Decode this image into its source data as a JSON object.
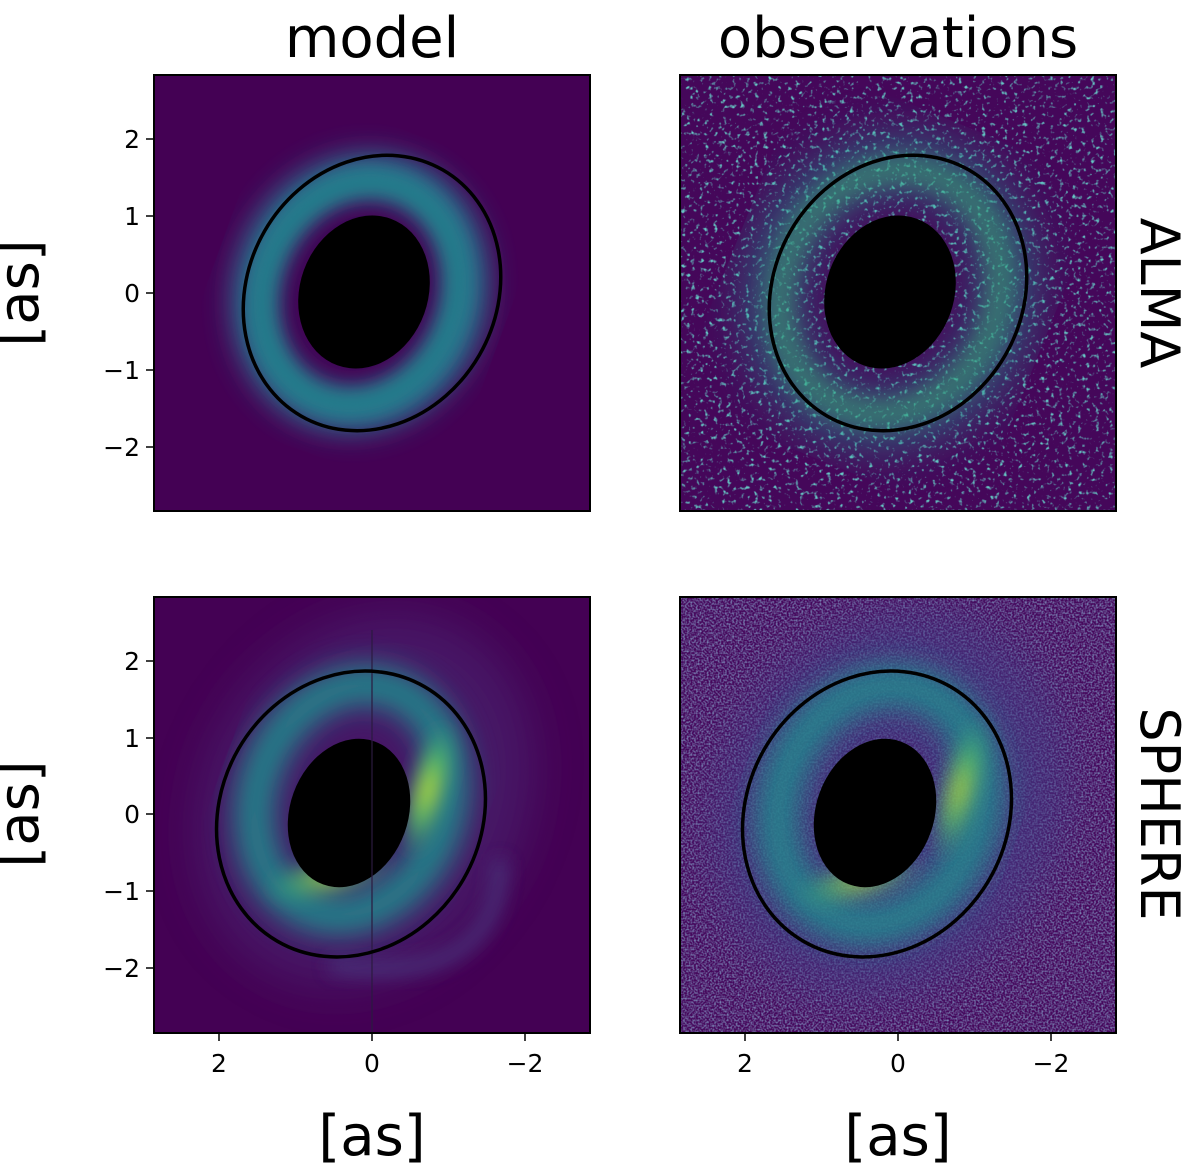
{
  "columns": [
    "model",
    "observations"
  ],
  "rows": [
    "ALMA",
    "SPHERE"
  ],
  "axis_label": "[as]",
  "y_ticks": [
    "2",
    "1",
    "0",
    "−1",
    "−2"
  ],
  "x_ticks": [
    "2",
    "0",
    "−2"
  ],
  "colors": {
    "background": "#440154",
    "observation_background": "#45075a",
    "ring_dim": "#3b528b",
    "ring_mid": "#21918c",
    "ring_bright": "#5ec962",
    "ring_peak": "#fde725",
    "mask": "#000000",
    "contour": "#000000"
  },
  "chart_data": [
    {
      "type": "heatmap",
      "panel": "model / ALMA",
      "xlabel": "",
      "ylabel": "[as]",
      "xlim": [
        2.85,
        -2.85
      ],
      "ylim": [
        -2.85,
        2.85
      ],
      "outer_ellipse": {
        "cx": -0.03,
        "cy": 0.0,
        "rx": 1.63,
        "ry": 1.85,
        "angle_deg": 30
      },
      "inner_mask": {
        "cx": -0.13,
        "cy": 0.01,
        "rx": 0.84,
        "ry": 1.02,
        "angle_deg": 20
      }
    },
    {
      "type": "heatmap",
      "panel": "observations / ALMA",
      "xlabel": "",
      "ylabel": "",
      "xlim": [
        2.85,
        -2.85
      ],
      "ylim": [
        -2.85,
        2.85
      ],
      "outer_ellipse": {
        "cx": -0.03,
        "cy": 0.0,
        "rx": 1.63,
        "ry": 1.85,
        "angle_deg": 30
      },
      "inner_mask": {
        "cx": -0.13,
        "cy": 0.01,
        "rx": 0.84,
        "ry": 1.02,
        "angle_deg": 20
      }
    },
    {
      "type": "heatmap",
      "panel": "model / SPHERE",
      "xlabel": "[as]",
      "ylabel": "[as]",
      "xlim": [
        2.85,
        -2.85
      ],
      "ylim": [
        -2.85,
        2.85
      ],
      "outer_ellipse": {
        "cx": 0.27,
        "cy": 0.27,
        "rx": 1.69,
        "ry": 1.92,
        "angle_deg": 30
      },
      "inner_mask": {
        "cx": 0.19,
        "cy": 0.13,
        "rx": 0.77,
        "ry": 0.99,
        "angle_deg": 20
      }
    },
    {
      "type": "heatmap",
      "panel": "observations / SPHERE",
      "xlabel": "[as]",
      "ylabel": "",
      "xlim": [
        2.85,
        -2.85
      ],
      "ylim": [
        -2.85,
        2.85
      ],
      "outer_ellipse": {
        "cx": 0.27,
        "cy": 0.27,
        "rx": 1.69,
        "ry": 1.92,
        "angle_deg": 30
      },
      "inner_mask": {
        "cx": 0.19,
        "cy": 0.13,
        "rx": 0.77,
        "ry": 0.99,
        "angle_deg": 20
      }
    }
  ]
}
